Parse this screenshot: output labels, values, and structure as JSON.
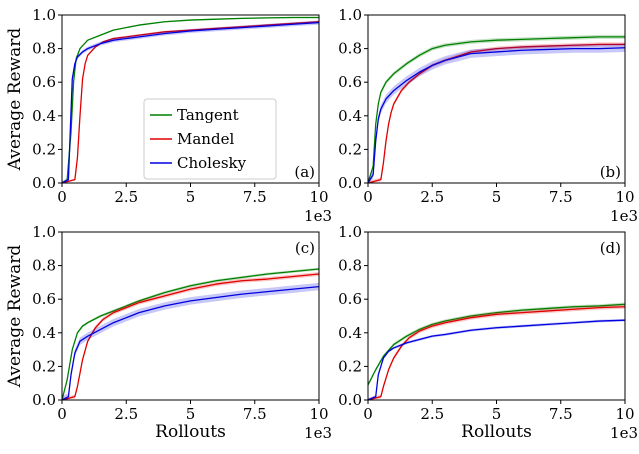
{
  "chart_data": [
    {
      "type": "line",
      "panel_label": "(a)",
      "xlabel": "",
      "ylabel": "Average Reward",
      "xlim": [
        0,
        10
      ],
      "ylim": [
        0,
        1
      ],
      "x_scale_label": "1e3",
      "xticks": [
        "0",
        "2.5",
        "5",
        "7.5",
        "10"
      ],
      "yticks": [
        "0.0",
        "0.2",
        "0.4",
        "0.6",
        "0.8",
        "1.0"
      ],
      "legend": {
        "position": "center",
        "entries": [
          "Tangent",
          "Mandel",
          "Cholesky"
        ]
      },
      "series": [
        {
          "name": "Tangent",
          "color": "#008000",
          "band": 0.004,
          "x": [
            0,
            0.2,
            0.35,
            0.45,
            0.55,
            0.7,
            1,
            1.5,
            2,
            3,
            4,
            5,
            6,
            7,
            8,
            9,
            10
          ],
          "y": [
            0,
            0.02,
            0.3,
            0.6,
            0.74,
            0.8,
            0.85,
            0.88,
            0.91,
            0.94,
            0.96,
            0.97,
            0.975,
            0.98,
            0.983,
            0.985,
            0.985
          ]
        },
        {
          "name": "Mandel",
          "color": "#e00000",
          "band": 0.006,
          "x": [
            0,
            0.5,
            0.6,
            0.7,
            0.8,
            0.9,
            1,
            1.3,
            1.6,
            2,
            2.5,
            3,
            4,
            5,
            6,
            7,
            8,
            9,
            10
          ],
          "y": [
            0,
            0.02,
            0.15,
            0.4,
            0.62,
            0.71,
            0.76,
            0.81,
            0.84,
            0.86,
            0.87,
            0.88,
            0.9,
            0.91,
            0.92,
            0.93,
            0.94,
            0.95,
            0.96
          ]
        },
        {
          "name": "Cholesky",
          "color": "#0000e0",
          "band": 0.012,
          "x": [
            0,
            0.25,
            0.32,
            0.4,
            0.5,
            0.6,
            0.8,
            1,
            1.5,
            2,
            2.5,
            3,
            4,
            5,
            6,
            7,
            8,
            9,
            10
          ],
          "y": [
            0,
            0.02,
            0.3,
            0.62,
            0.71,
            0.75,
            0.78,
            0.8,
            0.83,
            0.85,
            0.86,
            0.87,
            0.89,
            0.905,
            0.915,
            0.925,
            0.935,
            0.945,
            0.955
          ]
        }
      ]
    },
    {
      "type": "line",
      "panel_label": "(b)",
      "xlabel": "",
      "ylabel": "",
      "xlim": [
        0,
        10
      ],
      "ylim": [
        0,
        1
      ],
      "x_scale_label": "1e3",
      "xticks": [
        "0",
        "2.5",
        "5",
        "7.5",
        "10"
      ],
      "yticks": [
        "0.0",
        "0.2",
        "0.4",
        "0.6",
        "0.8",
        "1.0"
      ],
      "series": [
        {
          "name": "Tangent",
          "color": "#008000",
          "band": 0.012,
          "x": [
            0,
            0.2,
            0.3,
            0.4,
            0.5,
            0.7,
            1,
            1.5,
            2,
            2.5,
            3,
            4,
            5,
            6,
            7,
            8,
            9,
            10
          ],
          "y": [
            0,
            0.1,
            0.35,
            0.47,
            0.54,
            0.6,
            0.65,
            0.71,
            0.76,
            0.8,
            0.82,
            0.84,
            0.85,
            0.855,
            0.86,
            0.865,
            0.87,
            0.87
          ]
        },
        {
          "name": "Mandel",
          "color": "#e00000",
          "band": 0.012,
          "x": [
            0,
            0.5,
            0.6,
            0.7,
            0.8,
            0.9,
            1,
            1.3,
            1.6,
            2,
            2.5,
            3,
            4,
            5,
            6,
            7,
            8,
            9,
            10
          ],
          "y": [
            0,
            0.02,
            0.12,
            0.25,
            0.35,
            0.42,
            0.47,
            0.55,
            0.6,
            0.65,
            0.7,
            0.73,
            0.78,
            0.8,
            0.81,
            0.815,
            0.82,
            0.825,
            0.825
          ]
        },
        {
          "name": "Cholesky",
          "color": "#0000e0",
          "band": 0.025,
          "x": [
            0,
            0.2,
            0.3,
            0.4,
            0.5,
            0.7,
            1,
            1.5,
            2,
            2.5,
            3,
            3.5,
            4,
            5,
            6,
            7,
            8,
            9,
            10
          ],
          "y": [
            0,
            0.05,
            0.25,
            0.38,
            0.44,
            0.5,
            0.55,
            0.61,
            0.66,
            0.7,
            0.73,
            0.75,
            0.77,
            0.78,
            0.79,
            0.795,
            0.8,
            0.8,
            0.805
          ]
        }
      ]
    },
    {
      "type": "line",
      "panel_label": "(c)",
      "xlabel": "Rollouts",
      "ylabel": "Average Reward",
      "xlim": [
        0,
        10
      ],
      "ylim": [
        0,
        1
      ],
      "x_scale_label": "1e3",
      "xticks": [
        "0",
        "2.5",
        "5",
        "7.5",
        "10"
      ],
      "yticks": [
        "0.0",
        "0.2",
        "0.4",
        "0.6",
        "0.8",
        "1.0"
      ],
      "series": [
        {
          "name": "Tangent",
          "color": "#008000",
          "band": 0.008,
          "x": [
            0,
            0.2,
            0.4,
            0.6,
            0.8,
            1,
            1.5,
            2,
            2.5,
            3,
            4,
            5,
            6,
            7,
            8,
            9,
            10
          ],
          "y": [
            0,
            0.12,
            0.3,
            0.4,
            0.44,
            0.46,
            0.5,
            0.53,
            0.56,
            0.59,
            0.64,
            0.68,
            0.71,
            0.73,
            0.75,
            0.765,
            0.78
          ]
        },
        {
          "name": "Mandel",
          "color": "#e00000",
          "band": 0.012,
          "x": [
            0,
            0.5,
            0.6,
            0.7,
            0.8,
            1,
            1.3,
            1.6,
            2,
            2.5,
            3,
            4,
            5,
            6,
            7,
            8,
            9,
            10
          ],
          "y": [
            0,
            0.02,
            0.08,
            0.16,
            0.24,
            0.35,
            0.43,
            0.48,
            0.52,
            0.55,
            0.58,
            0.62,
            0.66,
            0.69,
            0.71,
            0.72,
            0.735,
            0.75
          ]
        },
        {
          "name": "Cholesky",
          "color": "#0000e0",
          "band": 0.022,
          "x": [
            0,
            0.25,
            0.35,
            0.5,
            0.7,
            1,
            1.5,
            2,
            2.5,
            3,
            4,
            5,
            6,
            7,
            8,
            9,
            10
          ],
          "y": [
            0,
            0.02,
            0.15,
            0.28,
            0.35,
            0.38,
            0.42,
            0.46,
            0.49,
            0.52,
            0.56,
            0.59,
            0.61,
            0.63,
            0.645,
            0.66,
            0.675
          ]
        }
      ]
    },
    {
      "type": "line",
      "panel_label": "(d)",
      "xlabel": "Rollouts",
      "ylabel": "",
      "xlim": [
        0,
        10
      ],
      "ylim": [
        0,
        1
      ],
      "x_scale_label": "1e3",
      "xticks": [
        "0",
        "2.5",
        "5",
        "7.5",
        "10"
      ],
      "yticks": [
        "0.0",
        "0.2",
        "0.4",
        "0.6",
        "0.8",
        "1.0"
      ],
      "series": [
        {
          "name": "Tangent",
          "color": "#008000",
          "band": 0.01,
          "x": [
            0,
            0.3,
            0.6,
            1,
            1.5,
            2,
            2.5,
            3,
            4,
            5,
            6,
            7,
            8,
            9,
            10
          ],
          "y": [
            0.09,
            0.18,
            0.26,
            0.33,
            0.38,
            0.42,
            0.45,
            0.47,
            0.5,
            0.52,
            0.535,
            0.545,
            0.555,
            0.56,
            0.57
          ]
        },
        {
          "name": "Mandel",
          "color": "#e00000",
          "band": 0.012,
          "x": [
            0,
            0.5,
            0.6,
            0.8,
            1,
            1.3,
            1.6,
            2,
            2.5,
            3,
            4,
            5,
            6,
            7,
            8,
            9,
            10
          ],
          "y": [
            0,
            0.02,
            0.08,
            0.18,
            0.25,
            0.32,
            0.37,
            0.41,
            0.44,
            0.46,
            0.49,
            0.51,
            0.52,
            0.53,
            0.54,
            0.55,
            0.555
          ]
        },
        {
          "name": "Cholesky",
          "color": "#0000e0",
          "band": 0.008,
          "x": [
            0,
            0.3,
            0.4,
            0.6,
            0.8,
            1,
            1.5,
            2,
            2.5,
            3,
            4,
            5,
            6,
            7,
            8,
            9,
            10
          ],
          "y": [
            0,
            0.02,
            0.15,
            0.25,
            0.29,
            0.31,
            0.34,
            0.36,
            0.38,
            0.39,
            0.415,
            0.43,
            0.44,
            0.45,
            0.46,
            0.47,
            0.475
          ]
        }
      ]
    }
  ]
}
